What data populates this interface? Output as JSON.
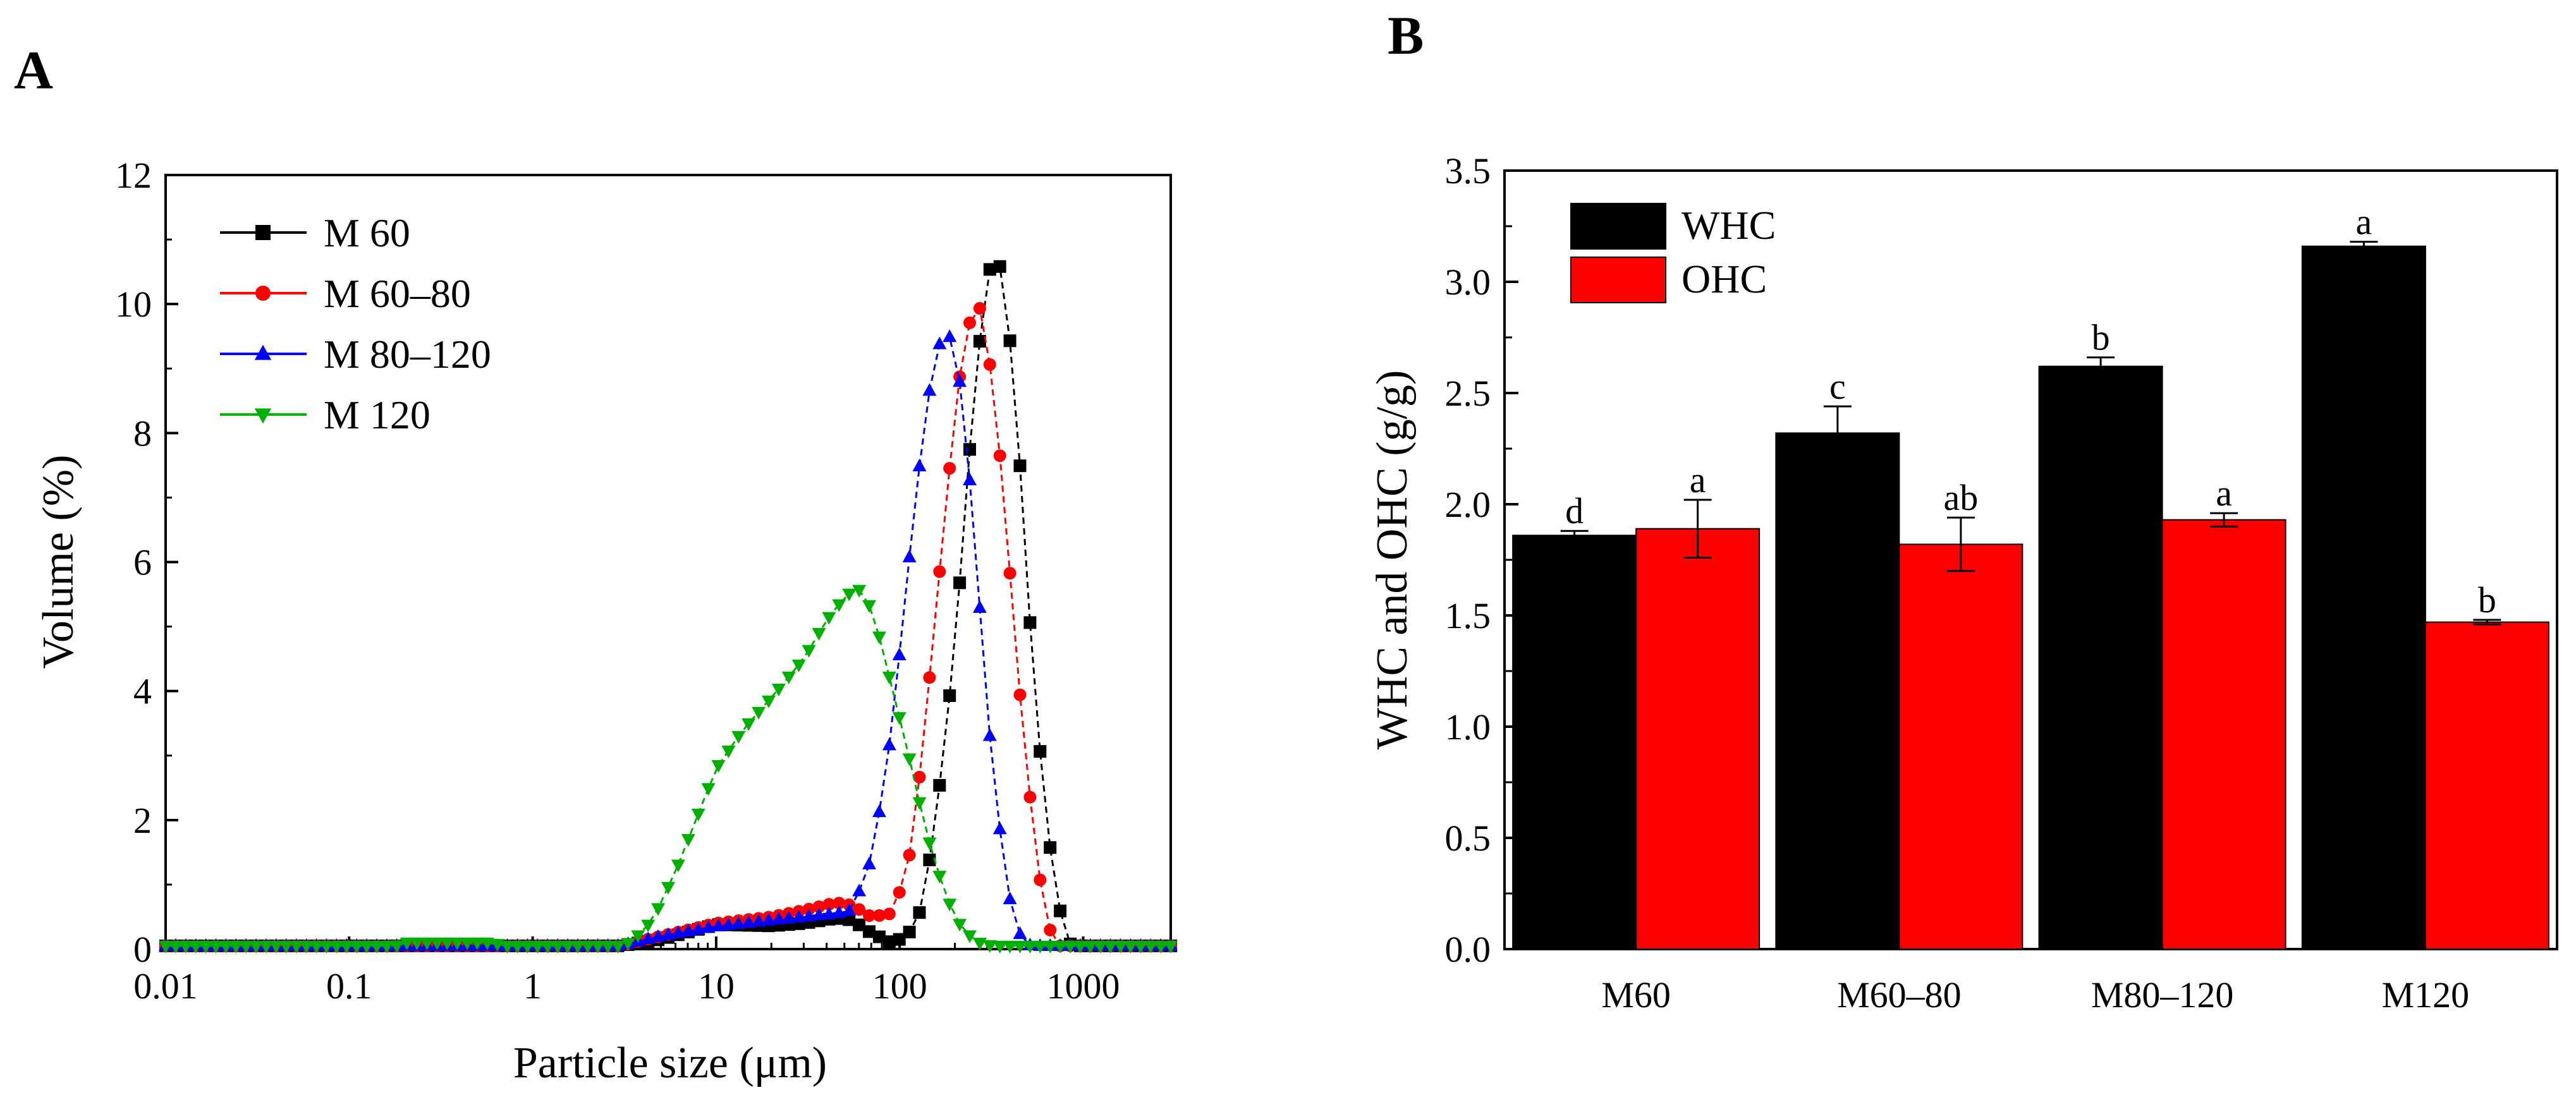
{
  "figure": {
    "panel_a_label": "A",
    "panel_b_label": "B"
  },
  "chart_data": [
    {
      "type": "line",
      "panel": "A",
      "title": "",
      "xlabel": "Particle size (μm)",
      "ylabel": "Volume (%)",
      "xscale": "log",
      "xlim": [
        0.01,
        3000
      ],
      "ylim": [
        0,
        12
      ],
      "xticks": [
        0.01,
        0.1,
        1,
        10,
        100,
        1000
      ],
      "xtick_labels": [
        "0.01",
        "0.1",
        "1",
        "10",
        "100",
        "1000"
      ],
      "yticks": [
        0,
        2,
        4,
        6,
        8,
        10,
        12
      ],
      "ytick_labels": [
        "0",
        "2",
        "4",
        "6",
        "8",
        "10",
        "12"
      ],
      "legend_position": "top-left",
      "series": [
        {
          "name": "M 60",
          "color": "#000000",
          "marker": "square",
          "anchors": [
            [
              0.01,
              0.05
            ],
            [
              3.0,
              0.05
            ],
            [
              5,
              0.15
            ],
            [
              10,
              0.38
            ],
            [
              20,
              0.36
            ],
            [
              30,
              0.4
            ],
            [
              45,
              0.48
            ],
            [
              55,
              0.45
            ],
            [
              70,
              0.25
            ],
            [
              90,
              0.1
            ],
            [
              110,
              0.2
            ],
            [
              130,
              0.6
            ],
            [
              150,
              1.6
            ],
            [
              180,
              3.4
            ],
            [
              210,
              5.5
            ],
            [
              240,
              7.7
            ],
            [
              270,
              9.3
            ],
            [
              300,
              10.4
            ],
            [
              330,
              10.8
            ],
            [
              360,
              10.5
            ],
            [
              400,
              9.4
            ],
            [
              450,
              7.6
            ],
            [
              500,
              5.5
            ],
            [
              560,
              3.6
            ],
            [
              620,
              2.2
            ],
            [
              700,
              1.0
            ],
            [
              780,
              0.35
            ],
            [
              850,
              0.08
            ],
            [
              900,
              0.05
            ],
            [
              3000,
              0.05
            ]
          ]
        },
        {
          "name": "M 60–80",
          "color": "#ff0000",
          "marker": "circle",
          "anchors": [
            [
              0.01,
              0.05
            ],
            [
              3.0,
              0.05
            ],
            [
              5,
              0.2
            ],
            [
              10,
              0.4
            ],
            [
              20,
              0.5
            ],
            [
              30,
              0.6
            ],
            [
              45,
              0.72
            ],
            [
              55,
              0.68
            ],
            [
              70,
              0.5
            ],
            [
              90,
              0.55
            ],
            [
              110,
              1.2
            ],
            [
              130,
              2.8
            ],
            [
              150,
              4.6
            ],
            [
              180,
              7.0
            ],
            [
              210,
              8.8
            ],
            [
              240,
              9.7
            ],
            [
              270,
              10.0
            ],
            [
              300,
              9.4
            ],
            [
              340,
              8.1
            ],
            [
              380,
              6.6
            ],
            [
              420,
              5.0
            ],
            [
              470,
              3.4
            ],
            [
              520,
              2.2
            ],
            [
              580,
              1.1
            ],
            [
              640,
              0.4
            ],
            [
              700,
              0.1
            ],
            [
              750,
              0.05
            ],
            [
              3000,
              0.05
            ]
          ]
        },
        {
          "name": "M 80–120",
          "color": "#0000ff",
          "marker": "triangle-up",
          "anchors": [
            [
              0.01,
              0.05
            ],
            [
              3.0,
              0.05
            ],
            [
              5,
              0.2
            ],
            [
              10,
              0.35
            ],
            [
              20,
              0.45
            ],
            [
              30,
              0.5
            ],
            [
              45,
              0.55
            ],
            [
              55,
              0.6
            ],
            [
              70,
              1.4
            ],
            [
              85,
              2.8
            ],
            [
              100,
              4.6
            ],
            [
              120,
              6.8
            ],
            [
              140,
              8.4
            ],
            [
              160,
              9.3
            ],
            [
              180,
              9.6
            ],
            [
              200,
              9.3
            ],
            [
              225,
              8.3
            ],
            [
              250,
              6.7
            ],
            [
              280,
              4.9
            ],
            [
              310,
              3.3
            ],
            [
              350,
              1.9
            ],
            [
              390,
              0.9
            ],
            [
              430,
              0.35
            ],
            [
              480,
              0.1
            ],
            [
              520,
              0.05
            ],
            [
              3000,
              0.05
            ]
          ]
        },
        {
          "name": "M 120",
          "color": "#00b000",
          "marker": "triangle-down",
          "anchors": [
            [
              0.01,
              0.05
            ],
            [
              0.18,
              0.05
            ],
            [
              0.2,
              0.1
            ],
            [
              0.6,
              0.1
            ],
            [
              0.7,
              0.05
            ],
            [
              3.0,
              0.05
            ],
            [
              3.5,
              0.12
            ],
            [
              4.5,
              0.45
            ],
            [
              6,
              1.2
            ],
            [
              8,
              2.1
            ],
            [
              10,
              2.8
            ],
            [
              14,
              3.4
            ],
            [
              20,
              3.9
            ],
            [
              30,
              4.5
            ],
            [
              40,
              5.1
            ],
            [
              50,
              5.45
            ],
            [
              58,
              5.6
            ],
            [
              65,
              5.5
            ],
            [
              75,
              5.0
            ],
            [
              90,
              4.1
            ],
            [
              110,
              3.1
            ],
            [
              130,
              2.2
            ],
            [
              150,
              1.5
            ],
            [
              180,
              0.8
            ],
            [
              220,
              0.3
            ],
            [
              270,
              0.1
            ],
            [
              320,
              0.05
            ],
            [
              3000,
              0.05
            ]
          ]
        }
      ]
    },
    {
      "type": "bar",
      "panel": "B",
      "title": "",
      "xlabel": "",
      "ylabel": "WHC and OHC (g/g)",
      "ylim": [
        0,
        3.5
      ],
      "yticks": [
        0,
        0.5,
        1.0,
        1.5,
        2.0,
        2.5,
        3.0,
        3.5
      ],
      "ytick_labels": [
        "0.0",
        "0.5",
        "1.0",
        "1.5",
        "2.0",
        "2.5",
        "3.0",
        "3.5"
      ],
      "categories": [
        "M60",
        "M60–80",
        "M80–120",
        "M120"
      ],
      "legend_position": "top-left",
      "series": [
        {
          "name": "WHC",
          "color": "#000000",
          "values": [
            1.86,
            2.32,
            2.62,
            3.16
          ],
          "errors": [
            0.02,
            0.12,
            0.04,
            0.02
          ],
          "letters": [
            "d",
            "c",
            "b",
            "a"
          ]
        },
        {
          "name": "OHC",
          "color": "#ff0000",
          "values": [
            1.89,
            1.82,
            1.93,
            1.47
          ],
          "errors": [
            0.13,
            0.12,
            0.03,
            0.01
          ],
          "letters": [
            "a",
            "ab",
            "a",
            "b"
          ]
        }
      ]
    }
  ]
}
